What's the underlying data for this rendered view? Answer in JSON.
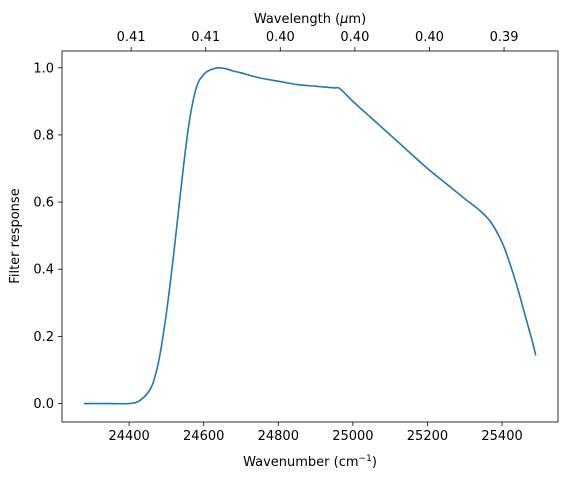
{
  "chart_data": {
    "type": "line",
    "xlabel_base": "Wavenumber (cm",
    "xlabel_sup": "−1",
    "xlabel_end": ")",
    "ylabel": "Filter response",
    "top_xlabel_base": "Wavelength (",
    "top_xlabel_unit": "μ",
    "top_xlabel_end": "m)",
    "xlim": [
      24220,
      25550
    ],
    "ylim": [
      -0.055,
      1.05
    ],
    "grid": false,
    "x_ticks": [
      24400,
      24600,
      24800,
      25000,
      25200,
      25400
    ],
    "x_tick_labels": [
      "24400",
      "24600",
      "24800",
      "25000",
      "25200",
      "25400"
    ],
    "y_ticks": [
      0.0,
      0.2,
      0.4,
      0.6,
      0.8,
      1.0
    ],
    "y_tick_labels": [
      "0.0",
      "0.2",
      "0.4",
      "0.6",
      "0.8",
      "1.0"
    ],
    "top_ticks_x": [
      24400,
      24600,
      24800,
      25000,
      25200,
      25400
    ],
    "top_tick_labels": [
      "0.41",
      "0.41",
      "0.40",
      "0.40",
      "0.40",
      "0.39"
    ],
    "series": [
      {
        "color": "#1f77b4",
        "x": [
          24280,
          24300,
          24350,
          24400,
          24430,
          24460,
          24480,
          24500,
          24520,
          24540,
          24560,
          24580,
          24600,
          24620,
          24640,
          24660,
          24680,
          24700,
          24750,
          24800,
          24850,
          24900,
          24950,
          24965,
          25000,
          25050,
          25100,
          25150,
          25200,
          25250,
          25300,
          25340,
          25370,
          25400,
          25420,
          25440,
          25460,
          25480,
          25490
        ],
        "y": [
          0.0,
          0.0,
          0.0,
          0.0,
          0.01,
          0.05,
          0.13,
          0.27,
          0.45,
          0.65,
          0.83,
          0.94,
          0.98,
          0.995,
          1.0,
          0.997,
          0.99,
          0.985,
          0.97,
          0.96,
          0.95,
          0.945,
          0.94,
          0.938,
          0.9,
          0.85,
          0.8,
          0.75,
          0.7,
          0.655,
          0.61,
          0.575,
          0.54,
          0.48,
          0.42,
          0.35,
          0.27,
          0.19,
          0.145
        ]
      }
    ]
  }
}
